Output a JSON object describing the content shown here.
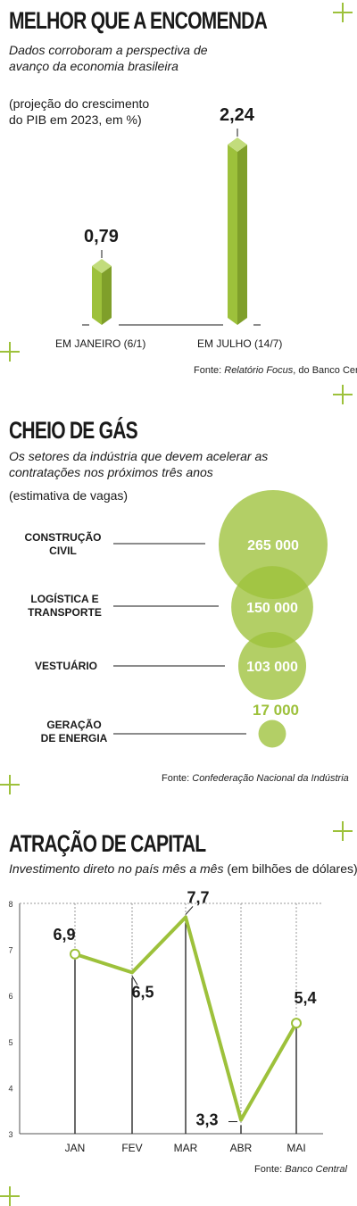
{
  "colors": {
    "accent": "#9dc13b",
    "accent_dark": "#7f9f2a",
    "accent_light": "#c2dc7c",
    "text": "#1a1a1a"
  },
  "section1": {
    "title": "MELHOR QUE A ENCOMENDA",
    "subtitle": "Dados corroboram a perspectiva de avanço da economia brasileira",
    "note": "(projeção do crescimento do PIB em 2023, em %)",
    "source_prefix": "Fonte: ",
    "source_italic": "Relatório Focus",
    "source_suffix": ", do Banco Central"
  },
  "section2": {
    "title": "CHEIO DE GÁS",
    "subtitle": "Os setores da indústria que devem acelerar as contratações nos próximos três anos",
    "note": "(estimativa de vagas)",
    "source_prefix": "Fonte: ",
    "source_italic": "Confederação Nacional da Indústria"
  },
  "section3": {
    "title": "ATRAÇÃO DE CAPITAL",
    "subtitle_italic": "Investimento direto no país mês a mês",
    "subtitle_rest": " (em bilhões de dólares)",
    "source_prefix": "Fonte: ",
    "source_italic": "Banco Central"
  },
  "chart_data": [
    {
      "type": "bar",
      "categories": [
        "EM JANEIRO (6/1)",
        "EM JULHO (14/7)"
      ],
      "values": [
        0.79,
        2.24
      ],
      "value_labels": [
        "0,79",
        "2,24"
      ],
      "title": "",
      "ylabel": "",
      "ylim": [
        0,
        2.24
      ]
    },
    {
      "type": "scatter",
      "categories": [
        "CONSTRUÇÃO CIVIL",
        "LOGÍSTICA E TRANSPORTE",
        "VESTUÁRIO",
        "GERAÇÃO DE ENERGIA"
      ],
      "category_lines": [
        [
          "CONSTRUÇÃO",
          "CIVIL"
        ],
        [
          "LOGÍSTICA E",
          "TRANSPORTE"
        ],
        [
          "VESTUÁRIO"
        ],
        [
          "GERAÇÃO",
          "DE ENERGIA"
        ]
      ],
      "values": [
        265000,
        150000,
        103000,
        17000
      ],
      "value_labels": [
        "265 000",
        "150 000",
        "103 000",
        "17 000"
      ],
      "title": ""
    },
    {
      "type": "line",
      "x": [
        "JAN",
        "FEV",
        "MAR",
        "ABR",
        "MAI"
      ],
      "series": [
        {
          "values": [
            6.9,
            6.5,
            7.7,
            3.3,
            5.4
          ]
        }
      ],
      "value_labels": [
        "6,9",
        "6,5",
        "7,7",
        "3,3",
        "5,4"
      ],
      "yticks": [
        "3",
        "4",
        "5",
        "6",
        "7",
        "8"
      ],
      "ylim": [
        3,
        8
      ],
      "grid": true,
      "title": ""
    }
  ]
}
